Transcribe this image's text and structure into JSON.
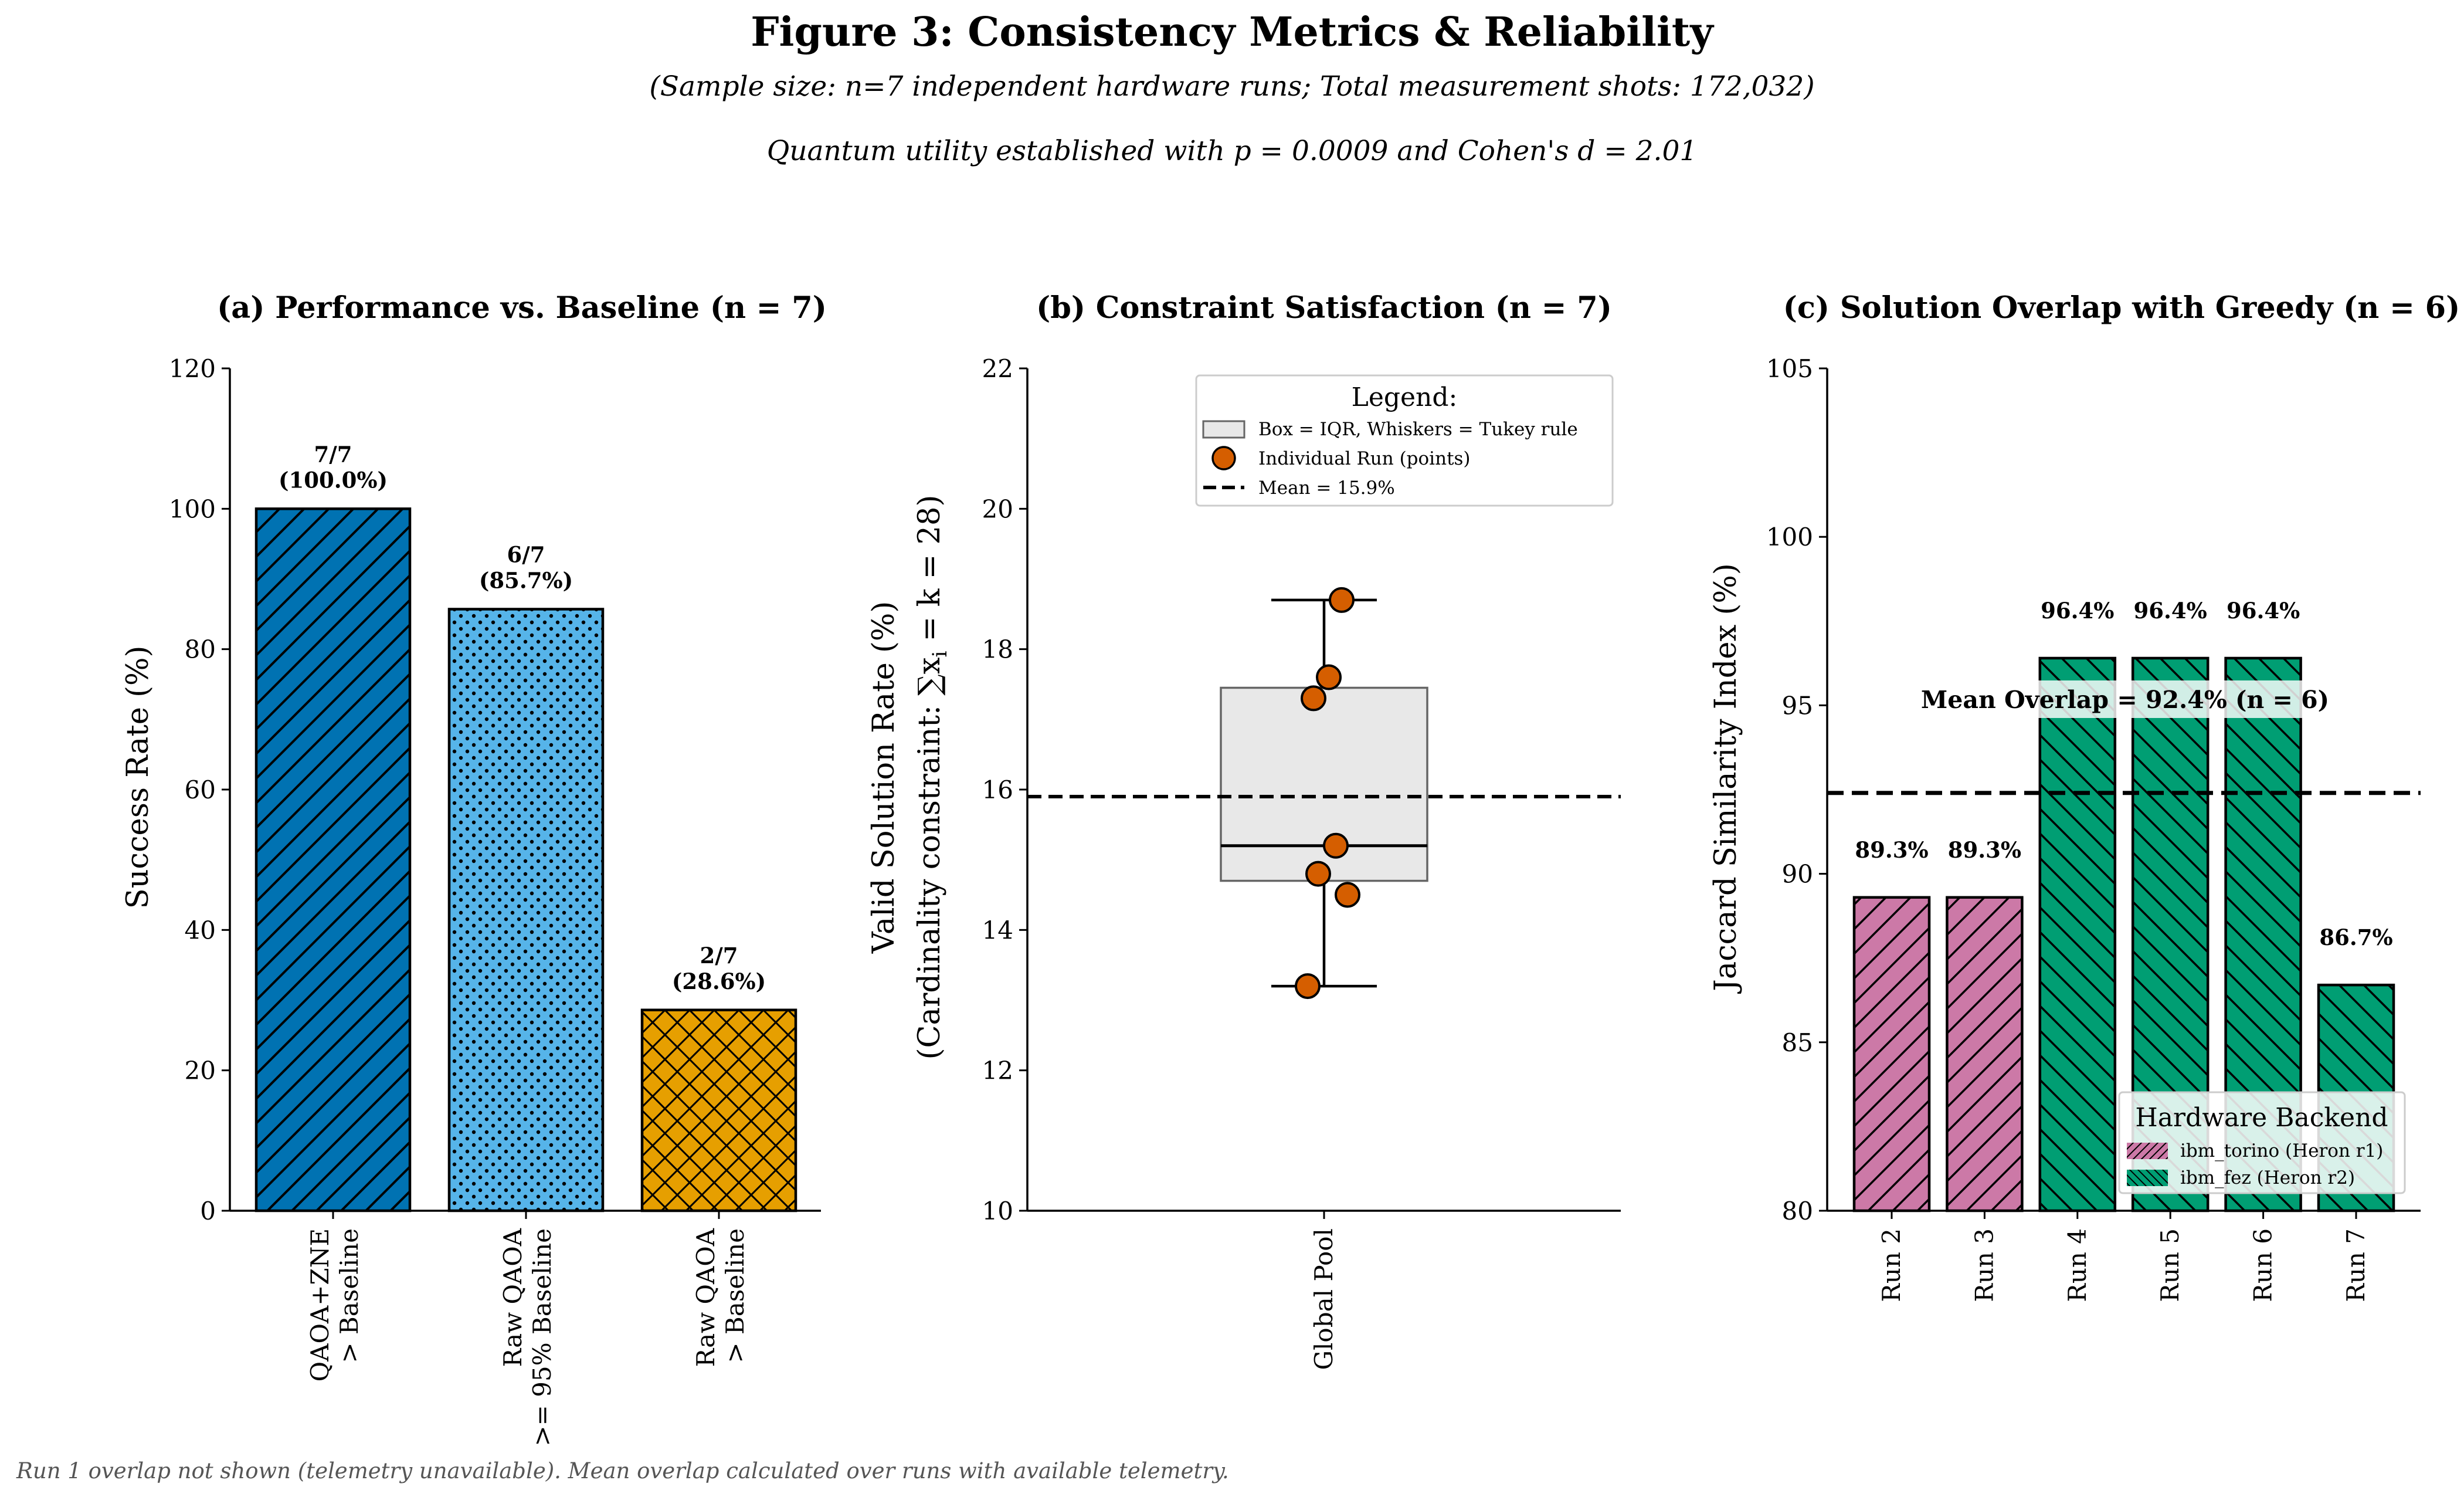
{
  "figure": {
    "title": "Figure 3: Consistency Metrics & Reliability",
    "subtitle": "(Sample size: n=7 independent hardware runs; Total measurement shots: 172,032)",
    "subtitle2": "Quantum utility established with p = 0.0009 and Cohen's d = 2.01",
    "footnote": "Run 1 overlap not shown (telemetry unavailable). Mean overlap calculated over runs with available telemetry."
  },
  "chart_data": [
    {
      "type": "bar",
      "title": "(a) Performance vs. Baseline (n = 7)",
      "ylabel": "Success Rate (%)",
      "ylim": [
        0,
        120
      ],
      "yticks": [
        0,
        20,
        40,
        60,
        80,
        100,
        120
      ],
      "categories": [
        [
          "QAOA+ZNE",
          "> Baseline"
        ],
        [
          "Raw QAOA",
          ">= 95% Baseline"
        ],
        [
          "Raw QAOA",
          "> Baseline"
        ]
      ],
      "values": [
        100.0,
        85.7,
        28.6
      ],
      "data_labels": [
        [
          "7/7",
          "(100.0%)"
        ],
        [
          "6/7",
          "(85.7%)"
        ],
        [
          "2/7",
          "(28.6%)"
        ]
      ],
      "colors": [
        "#0072b2",
        "#56b4e9",
        "#e69f00"
      ],
      "hatches": [
        "diagonal",
        "dots",
        "crosshatch"
      ]
    },
    {
      "type": "box",
      "title": "(b) Constraint Satisfaction (n = 7)",
      "ylabel_line1": "(Cardinality constraint: ∑x",
      "ylabel_line1_sub": "i",
      "ylabel_line1_end": " = k = 28)",
      "ylabel_line2": "Valid Solution Rate (%)",
      "sum_index": "i",
      "ylim": [
        10,
        22
      ],
      "yticks": [
        10,
        12,
        14,
        16,
        18,
        20,
        22
      ],
      "category": "Global Pool",
      "box": {
        "whisker_low": 13.2,
        "q1": 14.7,
        "median": 15.2,
        "q3": 17.45,
        "whisker_high": 18.7
      },
      "points": [
        18.7,
        17.6,
        17.3,
        15.2,
        14.8,
        14.5,
        13.2
      ],
      "mean": 15.9,
      "legend": {
        "title": "Legend:",
        "items": [
          "Box = IQR, Whiskers = Tukey rule",
          "Individual Run (points)",
          "Mean = 15.9%"
        ]
      },
      "point_color": "#d55e00"
    },
    {
      "type": "bar",
      "title": "(c) Solution Overlap with Greedy (n = 6)",
      "ylabel": "Jaccard Similarity Index (%)",
      "ylim": [
        80,
        105
      ],
      "yticks": [
        80,
        85,
        90,
        95,
        100,
        105
      ],
      "categories": [
        "Run 2",
        "Run 3",
        "Run 4",
        "Run 5",
        "Run 6",
        "Run 7"
      ],
      "values": [
        89.3,
        89.3,
        96.4,
        96.4,
        96.4,
        86.7
      ],
      "data_labels": [
        "89.3%",
        "89.3%",
        "96.4%",
        "96.4%",
        "96.4%",
        "86.7%"
      ],
      "backend": [
        "torino",
        "torino",
        "fez",
        "fez",
        "fez",
        "fez"
      ],
      "mean_line": 92.4,
      "mean_label": "Mean Overlap = 92.4% (n = 6)",
      "legend": {
        "title": "Hardware Backend",
        "items": [
          "ibm_torino (Heron r1)",
          "ibm_fez (Heron r2)"
        ]
      },
      "colors": {
        "torino": "#cc79a7",
        "fez": "#009e73"
      }
    }
  ]
}
